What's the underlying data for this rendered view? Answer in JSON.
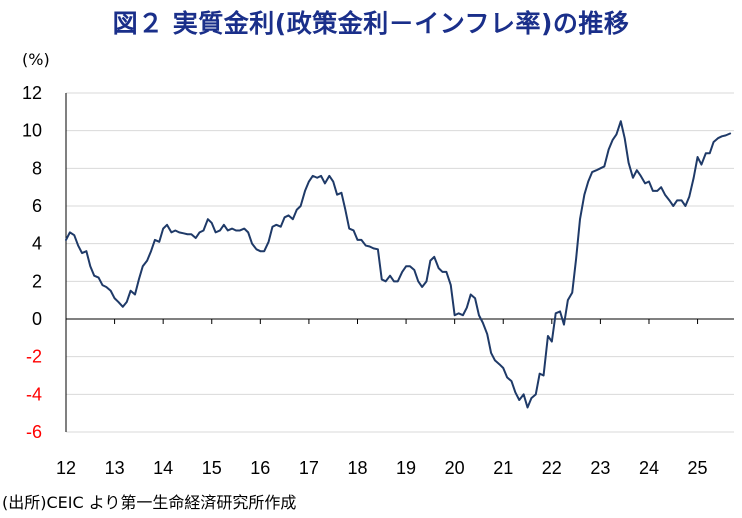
{
  "title": "図２ 実質金利(政策金利－インフレ率)の推移",
  "unit_label": "(%)",
  "source": "(出所)CEIC より第一生命経済研究所作成",
  "colors": {
    "line": "#1f3a68",
    "title": "#1a2f8a",
    "negative_tick": "#ff0000",
    "grid": "#d9d9d9"
  },
  "chart_data": {
    "type": "line",
    "title": "図２ 実質金利(政策金利－インフレ率)の推移",
    "ylabel": "(%)",
    "xlabel": "",
    "ylim": [
      -6,
      12
    ],
    "xlim": [
      2012.0,
      2025.75
    ],
    "yticks": [
      12,
      10,
      8,
      6,
      4,
      2,
      0,
      -2,
      -4,
      -6
    ],
    "xticks": [
      {
        "label": "12",
        "x": 2012.0
      },
      {
        "label": "13",
        "x": 2013.0
      },
      {
        "label": "14",
        "x": 2014.0
      },
      {
        "label": "15",
        "x": 2015.0
      },
      {
        "label": "16",
        "x": 2016.0
      },
      {
        "label": "17",
        "x": 2017.0
      },
      {
        "label": "18",
        "x": 2018.0
      },
      {
        "label": "19",
        "x": 2019.0
      },
      {
        "label": "20",
        "x": 2020.0
      },
      {
        "label": "21",
        "x": 2021.0
      },
      {
        "label": "22",
        "x": 2022.0
      },
      {
        "label": "23",
        "x": 2023.0
      },
      {
        "label": "24",
        "x": 2024.0
      },
      {
        "label": "25",
        "x": 2025.0
      }
    ],
    "grid": true,
    "series": [
      {
        "points": [
          [
            2012.0,
            4.2
          ],
          [
            2012.08,
            4.6
          ],
          [
            2012.17,
            4.45
          ],
          [
            2012.25,
            3.9
          ],
          [
            2012.33,
            3.5
          ],
          [
            2012.42,
            3.6
          ],
          [
            2012.5,
            2.8
          ],
          [
            2012.58,
            2.3
          ],
          [
            2012.67,
            2.2
          ],
          [
            2012.75,
            1.8
          ],
          [
            2012.83,
            1.7
          ],
          [
            2012.92,
            1.5
          ],
          [
            2013.0,
            1.1
          ],
          [
            2013.08,
            0.9
          ],
          [
            2013.17,
            0.65
          ],
          [
            2013.25,
            0.9
          ],
          [
            2013.33,
            1.5
          ],
          [
            2013.42,
            1.3
          ],
          [
            2013.5,
            2.1
          ],
          [
            2013.58,
            2.8
          ],
          [
            2013.67,
            3.1
          ],
          [
            2013.75,
            3.6
          ],
          [
            2013.83,
            4.2
          ],
          [
            2013.92,
            4.1
          ],
          [
            2014.0,
            4.8
          ],
          [
            2014.08,
            5.0
          ],
          [
            2014.17,
            4.6
          ],
          [
            2014.25,
            4.7
          ],
          [
            2014.33,
            4.6
          ],
          [
            2014.42,
            4.55
          ],
          [
            2014.5,
            4.5
          ],
          [
            2014.58,
            4.5
          ],
          [
            2014.67,
            4.3
          ],
          [
            2014.75,
            4.6
          ],
          [
            2014.83,
            4.7
          ],
          [
            2014.92,
            5.3
          ],
          [
            2015.0,
            5.1
          ],
          [
            2015.08,
            4.6
          ],
          [
            2015.17,
            4.7
          ],
          [
            2015.25,
            5.0
          ],
          [
            2015.33,
            4.7
          ],
          [
            2015.42,
            4.8
          ],
          [
            2015.5,
            4.7
          ],
          [
            2015.58,
            4.7
          ],
          [
            2015.67,
            4.8
          ],
          [
            2015.75,
            4.6
          ],
          [
            2015.83,
            4.0
          ],
          [
            2015.92,
            3.7
          ],
          [
            2016.0,
            3.6
          ],
          [
            2016.08,
            3.6
          ],
          [
            2016.17,
            4.1
          ],
          [
            2016.25,
            4.9
          ],
          [
            2016.33,
            5.0
          ],
          [
            2016.42,
            4.9
          ],
          [
            2016.5,
            5.4
          ],
          [
            2016.58,
            5.5
          ],
          [
            2016.67,
            5.3
          ],
          [
            2016.75,
            5.8
          ],
          [
            2016.83,
            6.0
          ],
          [
            2016.92,
            6.8
          ],
          [
            2017.0,
            7.3
          ],
          [
            2017.08,
            7.6
          ],
          [
            2017.17,
            7.5
          ],
          [
            2017.25,
            7.6
          ],
          [
            2017.33,
            7.2
          ],
          [
            2017.42,
            7.6
          ],
          [
            2017.5,
            7.3
          ],
          [
            2017.58,
            6.6
          ],
          [
            2017.67,
            6.7
          ],
          [
            2017.75,
            5.8
          ],
          [
            2017.83,
            4.8
          ],
          [
            2017.92,
            4.7
          ],
          [
            2018.0,
            4.2
          ],
          [
            2018.08,
            4.2
          ],
          [
            2018.17,
            3.9
          ],
          [
            2018.25,
            3.85
          ],
          [
            2018.33,
            3.75
          ],
          [
            2018.42,
            3.7
          ],
          [
            2018.5,
            2.1
          ],
          [
            2018.58,
            2.0
          ],
          [
            2018.67,
            2.3
          ],
          [
            2018.75,
            2.0
          ],
          [
            2018.83,
            2.0
          ],
          [
            2018.92,
            2.5
          ],
          [
            2019.0,
            2.8
          ],
          [
            2019.08,
            2.8
          ],
          [
            2019.17,
            2.6
          ],
          [
            2019.25,
            2.0
          ],
          [
            2019.33,
            1.7
          ],
          [
            2019.42,
            2.0
          ],
          [
            2019.5,
            3.1
          ],
          [
            2019.58,
            3.3
          ],
          [
            2019.67,
            2.7
          ],
          [
            2019.75,
            2.5
          ],
          [
            2019.83,
            2.5
          ],
          [
            2019.92,
            1.8
          ],
          [
            2020.0,
            0.2
          ],
          [
            2020.08,
            0.3
          ],
          [
            2020.17,
            0.2
          ],
          [
            2020.25,
            0.6
          ],
          [
            2020.33,
            1.3
          ],
          [
            2020.42,
            1.1
          ],
          [
            2020.5,
            0.2
          ],
          [
            2020.58,
            -0.2
          ],
          [
            2020.67,
            -0.8
          ],
          [
            2020.75,
            -1.8
          ],
          [
            2020.83,
            -2.2
          ],
          [
            2020.92,
            -2.4
          ],
          [
            2021.0,
            -2.6
          ],
          [
            2021.08,
            -3.1
          ],
          [
            2021.17,
            -3.3
          ],
          [
            2021.25,
            -3.9
          ],
          [
            2021.33,
            -4.3
          ],
          [
            2021.42,
            -4.0
          ],
          [
            2021.5,
            -4.7
          ],
          [
            2021.58,
            -4.2
          ],
          [
            2021.67,
            -4.0
          ],
          [
            2021.75,
            -2.9
          ],
          [
            2021.83,
            -3.0
          ],
          [
            2021.92,
            -0.9
          ],
          [
            2022.0,
            -1.2
          ],
          [
            2022.08,
            0.3
          ],
          [
            2022.17,
            0.4
          ],
          [
            2022.25,
            -0.3
          ],
          [
            2022.33,
            1.0
          ],
          [
            2022.42,
            1.4
          ],
          [
            2022.5,
            3.2
          ],
          [
            2022.58,
            5.3
          ],
          [
            2022.67,
            6.6
          ],
          [
            2022.75,
            7.3
          ],
          [
            2022.83,
            7.8
          ],
          [
            2022.92,
            7.9
          ],
          [
            2023.0,
            8.0
          ],
          [
            2023.08,
            8.1
          ],
          [
            2023.17,
            9.0
          ],
          [
            2023.25,
            9.5
          ],
          [
            2023.33,
            9.8
          ],
          [
            2023.42,
            10.5
          ],
          [
            2023.5,
            9.6
          ],
          [
            2023.58,
            8.3
          ],
          [
            2023.67,
            7.5
          ],
          [
            2023.75,
            7.9
          ],
          [
            2023.83,
            7.6
          ],
          [
            2023.92,
            7.2
          ],
          [
            2024.0,
            7.3
          ],
          [
            2024.08,
            6.8
          ],
          [
            2024.17,
            6.8
          ],
          [
            2024.25,
            7.0
          ],
          [
            2024.33,
            6.6
          ],
          [
            2024.42,
            6.3
          ],
          [
            2024.5,
            6.0
          ],
          [
            2024.58,
            6.3
          ],
          [
            2024.67,
            6.3
          ],
          [
            2024.75,
            6.0
          ],
          [
            2024.83,
            6.5
          ],
          [
            2024.92,
            7.5
          ],
          [
            2025.0,
            8.6
          ],
          [
            2025.08,
            8.2
          ],
          [
            2025.17,
            8.8
          ],
          [
            2025.25,
            8.8
          ],
          [
            2025.33,
            9.4
          ],
          [
            2025.42,
            9.6
          ],
          [
            2025.5,
            9.7
          ],
          [
            2025.58,
            9.75
          ],
          [
            2025.67,
            9.85
          ]
        ]
      }
    ]
  }
}
